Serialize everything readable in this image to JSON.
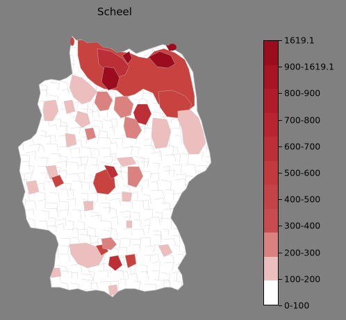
{
  "title": "Scheel",
  "legend": {
    "labels": [
      "1619.1",
      "900-1619.1",
      "800-900",
      "700-800",
      "600-700",
      "500-600",
      "400-500",
      "300-400",
      "200-300",
      "100-200",
      "0-100"
    ],
    "bands_top_to_bottom": [
      "#9b0c1f",
      "#a81424",
      "#b01c2a",
      "#b72531",
      "#bd2f37",
      "#c2393e",
      "#c44347",
      "#c84b4f",
      "#d9827f",
      "#ecbfbe",
      "#ffffff"
    ]
  },
  "map": {
    "region": "Germany",
    "base_fill": "#ffffff",
    "border_color": "#c8c8c8",
    "shade_colors": {
      "light": "#ecbfbe",
      "medium": "#d9827f",
      "red": "#c8423f",
      "strong": "#bd2f37",
      "dark": "#9b0c1f"
    }
  }
}
